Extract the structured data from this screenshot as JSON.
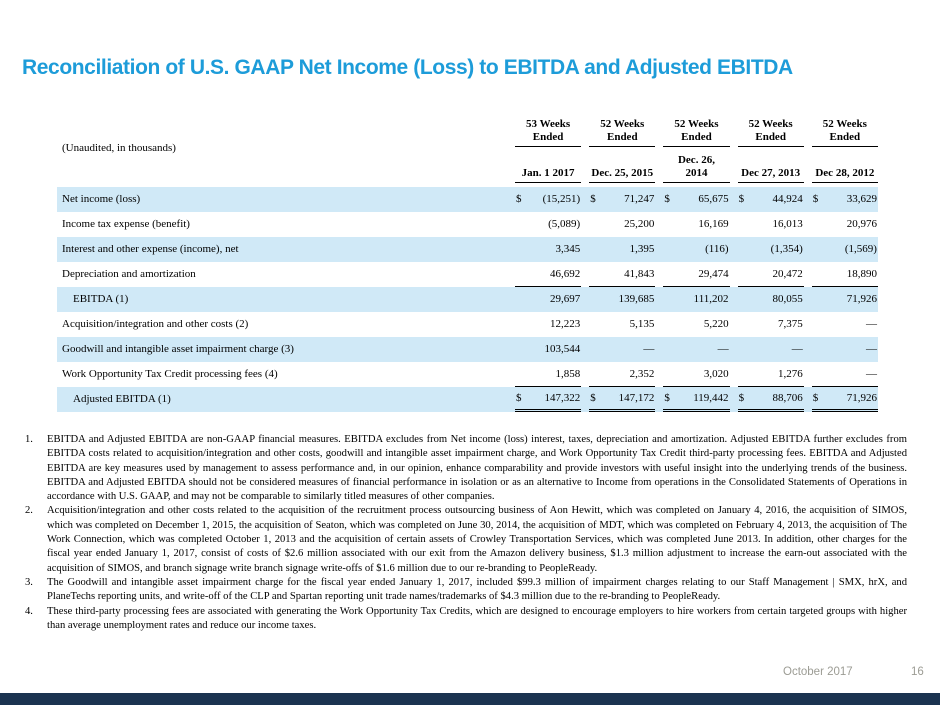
{
  "slide": {
    "title": "Reconciliation of U.S. GAAP Net Income (Loss) to EBITDA and Adjusted EBITDA",
    "footer": {
      "date": "October 2017",
      "page": "16"
    }
  },
  "colors": {
    "title_blue": "#1D9CD9",
    "row_shade": "#D0E9F7",
    "footer_bar": "#1B3350",
    "footer_text": "#9C9C94"
  },
  "table": {
    "unaudited_label": "(Unaudited, in thousands)",
    "periods": [
      "53 Weeks\nEnded",
      "52 Weeks\nEnded",
      "52 Weeks\nEnded",
      "52 Weeks\nEnded",
      "52 Weeks\nEnded"
    ],
    "dates": [
      "Jan. 1 2017",
      "Dec. 25, 2015",
      "Dec. 26,\n2014",
      "Dec 27, 2013",
      "Dec 28, 2012"
    ],
    "rows": [
      {
        "label": "Net income (loss)",
        "dollar": true,
        "shaded": true,
        "indent": false,
        "rule": "none",
        "values": [
          "(15,251)",
          "71,247",
          "65,675",
          "44,924",
          "33,629"
        ]
      },
      {
        "label": "Income tax expense (benefit)",
        "dollar": false,
        "shaded": false,
        "indent": false,
        "rule": "none",
        "values": [
          "(5,089)",
          "25,200",
          "16,169",
          "16,013",
          "20,976"
        ]
      },
      {
        "label": "Interest and other expense (income), net",
        "dollar": false,
        "shaded": true,
        "indent": false,
        "rule": "none",
        "values": [
          "3,345",
          "1,395",
          "(116)",
          "(1,354)",
          "(1,569)"
        ]
      },
      {
        "label": "Depreciation and amortization",
        "dollar": false,
        "shaded": false,
        "indent": false,
        "rule": "single",
        "values": [
          "46,692",
          "41,843",
          "29,474",
          "20,472",
          "18,890"
        ]
      },
      {
        "label": "EBITDA (1)",
        "dollar": false,
        "shaded": true,
        "indent": true,
        "rule": "none",
        "values": [
          "29,697",
          "139,685",
          "111,202",
          "80,055",
          "71,926"
        ]
      },
      {
        "label": "Acquisition/integration and other costs (2)",
        "dollar": false,
        "shaded": false,
        "indent": false,
        "rule": "none",
        "values": [
          "12,223",
          "5,135",
          "5,220",
          "7,375",
          "—"
        ]
      },
      {
        "label": "Goodwill and intangible asset impairment charge (3)",
        "dollar": false,
        "shaded": true,
        "indent": false,
        "rule": "none",
        "values": [
          "103,544",
          "—",
          "—",
          "—",
          "—"
        ]
      },
      {
        "label": "Work Opportunity Tax Credit processing fees (4)",
        "dollar": false,
        "shaded": false,
        "indent": false,
        "rule": "single",
        "values": [
          "1,858",
          "2,352",
          "3,020",
          "1,276",
          "—"
        ]
      },
      {
        "label": "Adjusted EBITDA (1)",
        "dollar": true,
        "shaded": true,
        "indent": true,
        "rule": "double",
        "values": [
          "147,322",
          "147,172",
          "119,442",
          "88,706",
          "71,926"
        ]
      }
    ]
  },
  "footnotes": [
    {
      "number": "1.",
      "text": "EBITDA and Adjusted EBITDA are non-GAAP financial measures. EBITDA excludes from Net income (loss) interest, taxes, depreciation and amortization. Adjusted EBITDA further excludes from EBITDA costs related to acquisition/integration and other costs, goodwill and intangible asset impairment charge, and Work Opportunity Tax Credit third-party processing fees. EBITDA and Adjusted EBITDA are key measures used by management to assess performance and, in our opinion, enhance comparability and provide investors with useful insight into the underlying trends of the business. EBITDA and Adjusted EBITDA should not be considered measures of financial performance in isolation or as an alternative to Income from operations in the Consolidated Statements of Operations in accordance with U.S. GAAP, and may not be comparable to similarly titled measures of other companies."
    },
    {
      "number": "2.",
      "text": "Acquisition/integration and other costs related to the acquisition of the recruitment process outsourcing business of Aon Hewitt, which was completed on January 4, 2016, the acquisition of SIMOS, which was completed on December 1, 2015, the acquisition of Seaton, which was completed on June 30, 2014, the acquisition of MDT, which was completed on February 4, 2013, the acquisition of The Work Connection, which was completed October 1, 2013 and the acquisition of certain assets of Crowley Transportation Services, which was completed June 2013. In addition, other charges for the fiscal year ended January 1, 2017, consist of costs of $2.6 million associated with our exit from the Amazon delivery business, $1.3 million adjustment to increase the earn-out associated with the acquisition of SIMOS, and branch signage write branch signage write-offs of $1.6 million due to our re-branding to PeopleReady."
    },
    {
      "number": "3.",
      "text": "The Goodwill and intangible asset impairment charge for the fiscal year ended January 1, 2017, included $99.3 million of impairment charges relating to our Staff Management | SMX, hrX, and PlaneTechs reporting units, and write-off of the CLP and Spartan reporting unit trade names/trademarks of $4.3 million due to the re-branding to PeopleReady."
    },
    {
      "number": "4.",
      "text": "These third-party processing fees are associated with generating the Work Opportunity Tax Credits, which are designed to encourage employers to hire workers from certain targeted groups with higher than average unemployment rates and reduce our income taxes."
    }
  ]
}
